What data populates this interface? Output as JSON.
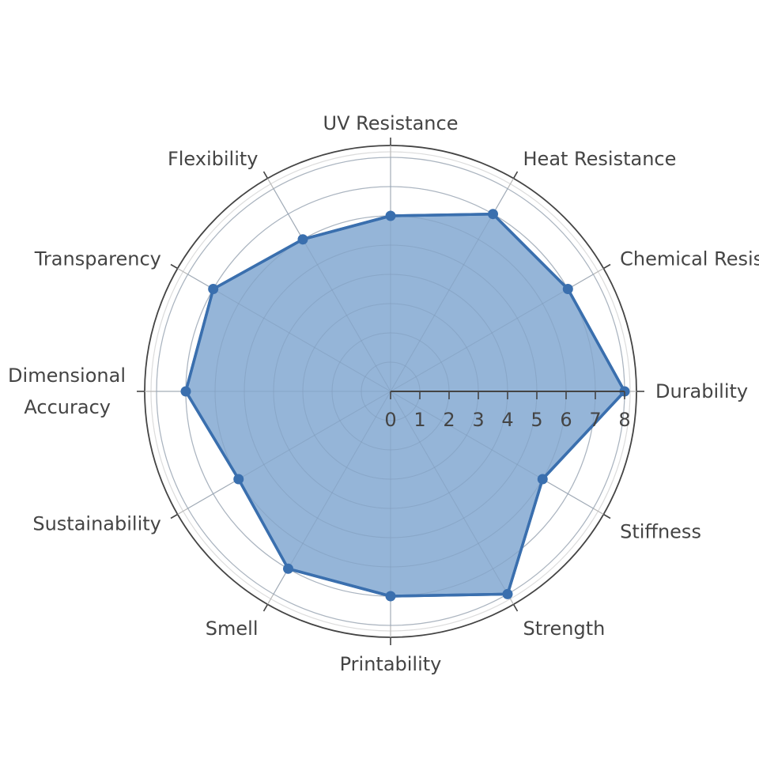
{
  "chart_data": {
    "type": "radar",
    "axes": [
      "Durability",
      "Chemical Resistance",
      "Heat Resistance",
      "UV Resistance",
      "Flexibility",
      "Transparency",
      "Dimensional Accuracy",
      "Sustainability",
      "Smell",
      "Printability",
      "Strength",
      "Stiffness"
    ],
    "values": [
      8,
      7,
      7,
      6,
      6,
      7,
      7,
      6,
      7,
      7,
      8,
      6
    ],
    "radial_ticks": [
      "0",
      "1",
      "2",
      "3",
      "4",
      "5",
      "6",
      "7",
      "8"
    ],
    "radial_range": [
      0,
      8
    ],
    "grid": true,
    "fill_color": "#8fb1d6",
    "line_color": "#3a6fae",
    "marker_color": "#3a6fae"
  }
}
